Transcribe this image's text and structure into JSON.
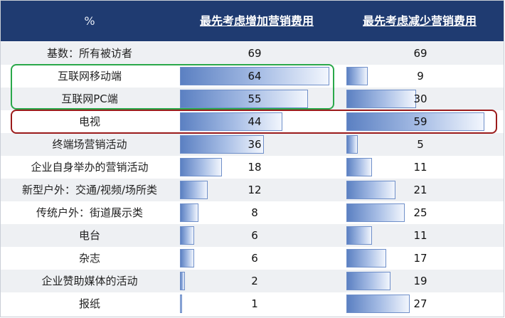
{
  "chart_data": {
    "type": "table",
    "corner_label": "%",
    "series": [
      {
        "name": "最先考虑增加营销费用"
      },
      {
        "name": "最先考虑减少营销费用"
      }
    ],
    "rows": [
      {
        "label": "基数：所有被访者",
        "increase": 69,
        "decrease": 69,
        "is_base": true
      },
      {
        "label": "互联网移动端",
        "increase": 64,
        "decrease": 9
      },
      {
        "label": "互联网PC端",
        "increase": 55,
        "decrease": 30
      },
      {
        "label": "电视",
        "increase": 44,
        "decrease": 59
      },
      {
        "label": "终端场营销活动",
        "increase": 36,
        "decrease": 5
      },
      {
        "label": "企业自身举办的营销活动",
        "increase": 18,
        "decrease": 11
      },
      {
        "label": "新型户外：交通/视频/场所类",
        "increase": 12,
        "decrease": 21
      },
      {
        "label": "传统户外：街道展示类",
        "increase": 8,
        "decrease": 25
      },
      {
        "label": "电台",
        "increase": 6,
        "decrease": 11
      },
      {
        "label": "杂志",
        "increase": 6,
        "decrease": 17
      },
      {
        "label": "企业赞助媒体的活动",
        "increase": 2,
        "decrease": 19
      },
      {
        "label": "报纸",
        "increase": 1,
        "decrease": 27
      }
    ],
    "bar_max": 64,
    "highlights": [
      {
        "rows": [
          "互联网移动端",
          "互联网PC端"
        ],
        "color": "#2aa84a"
      },
      {
        "rows": [
          "电视"
        ],
        "color": "#9b1b1b"
      }
    ],
    "bar_color": "#5b80c2",
    "header_color": "#1f3b71"
  }
}
